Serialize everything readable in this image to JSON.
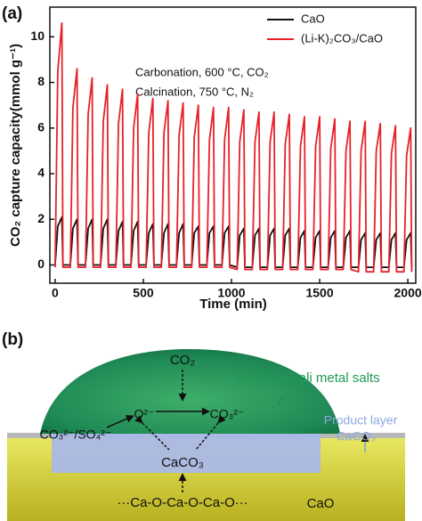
{
  "chart_data": {
    "type": "line",
    "panel_label": "(a)",
    "xlabel": "Time (min)",
    "ylabel": "CO₂ capture capacity(mmol g⁻¹)",
    "annotations": [
      "Carbonation, 600 °C, CO₂",
      "Calcination, 750 °C, N₂"
    ],
    "xlim": [
      -30,
      2045
    ],
    "ylim": [
      -0.8,
      11.3
    ],
    "xticks": [
      0,
      500,
      1000,
      1500,
      2000
    ],
    "yticks": [
      0,
      2,
      4,
      6,
      8,
      10
    ],
    "legend": "top-right",
    "x": [
      0,
      15,
      38,
      44,
      86,
      101,
      124,
      130,
      172,
      187,
      210,
      216,
      258,
      273,
      296,
      302,
      344,
      359,
      382,
      388,
      430,
      445,
      468,
      474,
      516,
      531,
      554,
      560,
      602,
      617,
      640,
      646,
      688,
      703,
      726,
      732,
      774,
      789,
      812,
      818,
      860,
      875,
      898,
      904,
      946,
      961,
      984,
      990,
      1032,
      1047,
      1070,
      1076,
      1118,
      1133,
      1156,
      1162,
      1204,
      1219,
      1242,
      1248,
      1290,
      1305,
      1328,
      1334,
      1376,
      1391,
      1414,
      1420,
      1462,
      1477,
      1500,
      1506,
      1548,
      1563,
      1586,
      1592,
      1634,
      1649,
      1672,
      1678,
      1720,
      1735,
      1758,
      1764,
      1806,
      1821,
      1844,
      1850,
      1892,
      1907,
      1930,
      1936,
      1978,
      1993,
      2016,
      2022
    ],
    "series": [
      {
        "name": "CaO",
        "color": "#111111",
        "values": [
          0.0,
          1.7,
          2.1,
          0.0,
          0.0,
          1.6,
          2.0,
          0.0,
          0.0,
          1.6,
          2.0,
          0.0,
          0.0,
          1.6,
          2.0,
          0.0,
          0.0,
          1.5,
          1.9,
          0.0,
          0.0,
          1.5,
          1.9,
          0.0,
          0.0,
          1.4,
          1.8,
          0.0,
          0.0,
          1.4,
          1.8,
          0.0,
          0.0,
          1.4,
          1.8,
          0.0,
          0.0,
          1.4,
          1.7,
          0.0,
          0.0,
          1.4,
          1.7,
          0.0,
          0.0,
          1.4,
          1.7,
          0.0,
          -0.1,
          1.3,
          1.6,
          -0.1,
          -0.1,
          1.3,
          1.6,
          -0.1,
          -0.1,
          1.3,
          1.6,
          -0.1,
          -0.1,
          1.3,
          1.6,
          -0.1,
          -0.1,
          1.2,
          1.5,
          -0.1,
          -0.1,
          1.2,
          1.5,
          -0.1,
          -0.1,
          1.2,
          1.5,
          -0.1,
          -0.1,
          1.2,
          1.5,
          -0.1,
          -0.1,
          1.1,
          1.4,
          -0.1,
          -0.1,
          1.1,
          1.4,
          -0.1,
          -0.1,
          1.1,
          1.4,
          -0.1,
          -0.1,
          1.1,
          1.4,
          -0.1
        ]
      },
      {
        "name": "(Li-K)₂CO₃/CaO",
        "color": "#e8202a",
        "values": [
          -0.1,
          8.5,
          10.6,
          -0.1,
          -0.1,
          6.9,
          8.6,
          -0.1,
          -0.1,
          6.6,
          8.2,
          -0.1,
          -0.1,
          6.3,
          7.9,
          -0.1,
          -0.1,
          6.2,
          7.7,
          -0.1,
          -0.1,
          6.0,
          7.5,
          -0.1,
          -0.1,
          5.8,
          7.3,
          -0.1,
          -0.1,
          5.8,
          7.2,
          -0.1,
          -0.1,
          5.7,
          7.1,
          -0.1,
          -0.1,
          5.6,
          7.0,
          -0.1,
          -0.1,
          5.5,
          6.9,
          -0.1,
          -0.1,
          5.5,
          6.9,
          -0.1,
          -0.2,
          5.4,
          6.8,
          -0.2,
          -0.2,
          5.4,
          6.7,
          -0.2,
          -0.2,
          5.4,
          6.7,
          -0.2,
          -0.2,
          5.3,
          6.6,
          -0.2,
          -0.2,
          5.2,
          6.5,
          -0.2,
          -0.2,
          5.2,
          6.5,
          -0.2,
          -0.2,
          5.1,
          6.4,
          -0.2,
          -0.2,
          5.0,
          6.3,
          -0.2,
          -0.3,
          5.0,
          6.3,
          -0.3,
          -0.3,
          5.0,
          6.2,
          -0.3,
          -0.3,
          4.9,
          6.1,
          -0.3,
          -0.3,
          4.8,
          6.0,
          -0.3
        ]
      }
    ]
  },
  "diagram": {
    "panel_label": "(b)",
    "gas": "CO₂",
    "melt": "Molten alkali metal salts",
    "oxide_ion": "O²⁻",
    "carbonate_ion": "CO₃²⁻",
    "anions": "CO₃²⁻/SO₄²⁻",
    "core_product": "CaCO₃",
    "product_layer": "Product layer",
    "product_layer_formula": "CaCO₃",
    "lattice": "···Ca-O-Ca-O-Ca-O···",
    "substrate": "CaO"
  }
}
